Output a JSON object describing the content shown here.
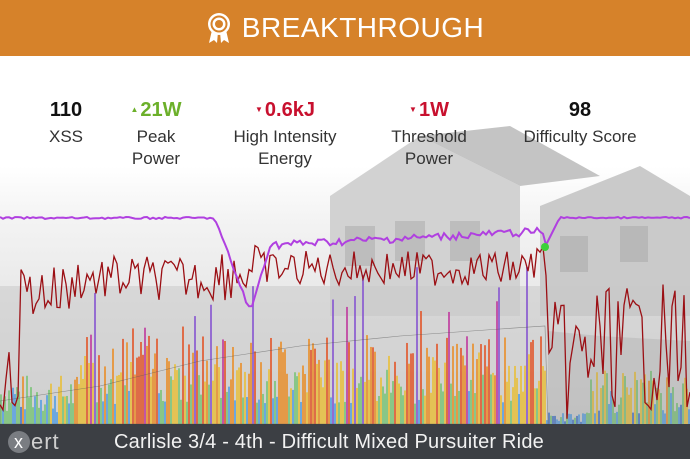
{
  "banner": {
    "title": "BREAKTHROUGH",
    "icon": "award-ribbon-icon",
    "color": "#d6822a"
  },
  "metrics": [
    {
      "value": "110",
      "label_line1": "XSS",
      "label_line2": "",
      "trend": "none"
    },
    {
      "value": "21W",
      "label_line1": "Peak",
      "label_line2": "Power",
      "trend": "up"
    },
    {
      "value": "0.6kJ",
      "label_line1": "High Intensity",
      "label_line2": "Energy",
      "trend": "down"
    },
    {
      "value": "1W",
      "label_line1": "Threshold",
      "label_line2": "Power",
      "trend": "down"
    },
    {
      "value": "98",
      "label_line1": "Difficulty Score",
      "label_line2": "",
      "trend": "none"
    }
  ],
  "colors": {
    "up": "#6cb02a",
    "down": "#c8102e",
    "mpa_line": "#b040e0",
    "heart_rate_line": "#9b0f14",
    "footer_bg": "#3c3f44"
  },
  "footer": {
    "logo_x": "x",
    "logo_rest": "ert",
    "ride_title": "Carlisle 3/4 - 4th - Difficult Mixed Pursuiter Ride"
  }
}
